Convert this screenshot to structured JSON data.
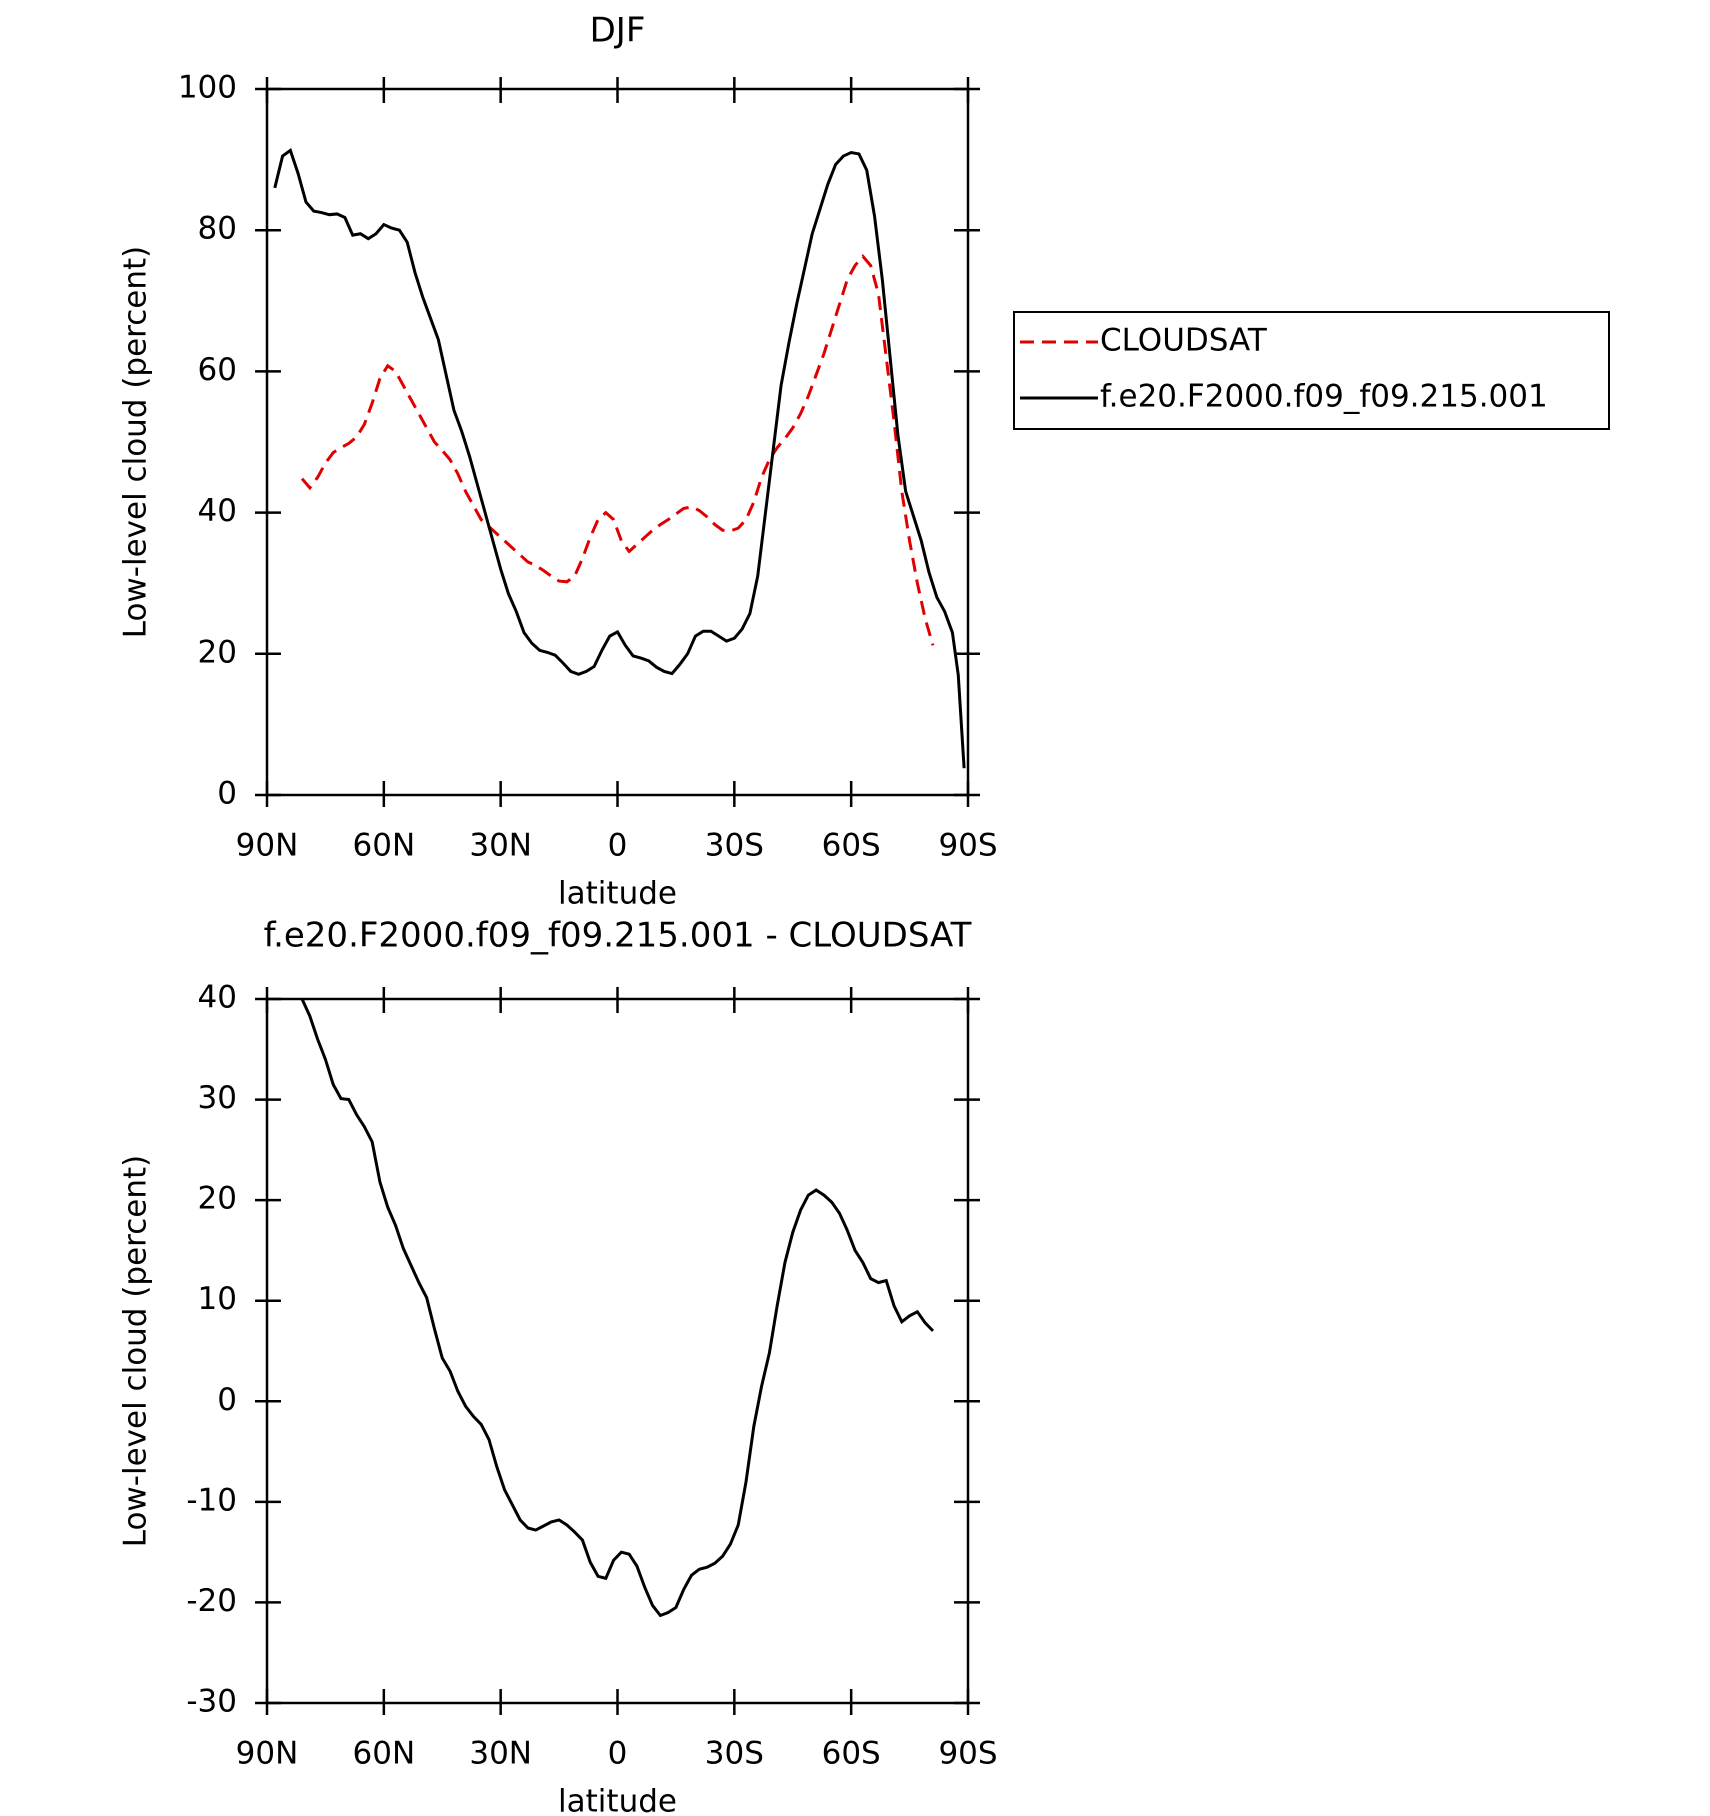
{
  "chart_data": [
    {
      "type": "line",
      "title": "DJF",
      "xlabel": "latitude",
      "ylabel": "Low-level cloud (percent)",
      "xlim": [
        90,
        -90
      ],
      "xticks": [
        {
          "value": 90,
          "label": "90N"
        },
        {
          "value": 60,
          "label": "60N"
        },
        {
          "value": 30,
          "label": "30N"
        },
        0,
        {
          "value": -30,
          "label": "30S"
        },
        {
          "value": -60,
          "label": "60S"
        },
        {
          "value": -90,
          "label": "90S"
        }
      ],
      "ylim": [
        0,
        100
      ],
      "yticks": [
        0,
        20,
        40,
        60,
        80,
        100
      ],
      "legend": "right",
      "series": [
        {
          "name": "CLOUDSAT",
          "color": "#e00000",
          "linestyle": "dashed",
          "x": [
            81,
            79,
            77,
            75,
            73,
            71,
            69,
            67,
            65,
            63,
            61,
            59,
            57,
            55,
            53,
            51,
            49,
            47,
            45,
            43,
            41,
            39,
            37,
            35,
            33,
            31,
            29,
            27,
            25,
            23,
            21,
            19,
            17,
            15,
            13,
            11,
            9,
            7,
            5,
            3,
            1,
            -1,
            -3,
            -5,
            -7,
            -9,
            -11,
            -13,
            -15,
            -17,
            -19,
            -21,
            -23,
            -25,
            -27,
            -29,
            -31,
            -33,
            -35,
            -37,
            -39,
            -41,
            -43,
            -45,
            -47,
            -49,
            -51,
            -53,
            -55,
            -57,
            -59,
            -61,
            -63,
            -65,
            -67,
            -69,
            -71,
            -73,
            -75,
            -77,
            -79,
            -81
          ],
          "values": [
            44.8,
            43.5,
            45,
            47,
            48.5,
            49.2,
            49.8,
            50.7,
            52.5,
            55.5,
            59,
            60.8,
            60,
            58,
            56,
            54,
            52,
            50,
            48.8,
            47.5,
            45.5,
            43,
            41,
            39,
            38,
            37,
            36,
            35,
            34,
            33,
            32.5,
            31.8,
            31,
            30.3,
            30.2,
            31,
            33.5,
            36.5,
            39,
            40,
            39,
            36,
            34.5,
            35.5,
            36.5,
            37.5,
            38.3,
            39,
            39.8,
            40.6,
            40.8,
            40.3,
            39.4,
            38.3,
            37.5,
            37.4,
            37.8,
            39,
            41.5,
            45,
            47.5,
            49.2,
            50.5,
            52,
            54,
            56.5,
            59.5,
            62.5,
            66,
            69.5,
            73,
            75,
            76.3,
            75,
            71,
            62,
            53,
            43,
            36,
            30,
            25,
            21.2
          ]
        },
        {
          "name": "f.e20.F2000.f09_f09.215.001",
          "color": "#000000",
          "linestyle": "solid",
          "x": [
            88,
            86,
            84,
            82,
            80,
            78,
            76,
            74,
            72,
            70,
            68,
            66,
            64,
            62,
            60,
            58,
            56,
            54,
            52,
            50,
            48,
            46,
            44,
            42,
            40,
            38,
            36,
            34,
            32,
            30,
            28,
            26,
            24,
            22,
            20,
            18,
            16,
            14,
            12,
            10,
            8,
            6,
            4,
            2,
            0,
            -2,
            -4,
            -6,
            -8,
            -10,
            -12,
            -14,
            -16,
            -18,
            -20,
            -22,
            -24,
            -26,
            -28,
            -30,
            -32,
            -34,
            -36,
            -38,
            -40,
            -42,
            -44,
            -46,
            -48,
            -50,
            -52,
            -54,
            -56,
            -58,
            -60,
            -62,
            -64,
            -66,
            -68,
            -70,
            -72,
            -74,
            -76,
            -78,
            -80,
            -82,
            -84,
            -86,
            -87.5,
            -89
          ],
          "values": [
            86,
            90.5,
            91.3,
            88,
            84,
            82.7,
            82.5,
            82.2,
            82.3,
            81.8,
            79.3,
            79.5,
            78.8,
            79.5,
            80.8,
            80.3,
            80,
            78.3,
            74,
            70.5,
            67.5,
            64.5,
            59.5,
            54.5,
            51.5,
            48,
            44,
            40,
            36,
            32,
            28.5,
            26,
            23,
            21.5,
            20.5,
            20.2,
            19.8,
            18.7,
            17.5,
            17.1,
            17.5,
            18.2,
            20.5,
            22.5,
            23.1,
            21.2,
            19.7,
            19.4,
            19,
            18.1,
            17.5,
            17.2,
            18.5,
            20,
            22.5,
            23.2,
            23.2,
            22.5,
            21.8,
            22.2,
            23.5,
            25.7,
            31,
            40,
            49,
            58,
            64,
            69.5,
            74.5,
            79.5,
            83,
            86.5,
            89.3,
            90.5,
            91,
            90.8,
            88.5,
            82,
            73,
            62,
            51,
            43,
            39.5,
            36,
            31.5,
            28,
            26,
            23,
            17,
            3.8
          ]
        }
      ]
    },
    {
      "type": "line",
      "title": "f.e20.F2000.f09_f09.215.001 - CLOUDSAT",
      "xlabel": "latitude",
      "ylabel": "Low-level cloud (percent)",
      "xlim": [
        90,
        -90
      ],
      "xticks": [
        {
          "value": 90,
          "label": "90N"
        },
        {
          "value": 60,
          "label": "60N"
        },
        {
          "value": 30,
          "label": "30N"
        },
        0,
        {
          "value": -30,
          "label": "30S"
        },
        {
          "value": -60,
          "label": "60S"
        },
        {
          "value": -90,
          "label": "90S"
        }
      ],
      "ylim": [
        -30,
        40
      ],
      "yticks": [
        -30,
        -20,
        -10,
        0,
        10,
        20,
        30,
        40
      ],
      "series": [
        {
          "color": "#000000",
          "linestyle": "solid",
          "x": [
            81,
            79,
            77,
            75,
            73,
            71,
            69,
            67,
            65,
            63,
            61,
            59,
            57,
            55,
            53,
            51,
            49,
            47,
            45,
            43,
            41,
            39,
            37,
            35,
            33,
            31,
            29,
            27,
            25,
            23,
            21,
            19,
            17,
            15,
            13,
            11,
            9,
            7,
            5,
            3,
            1,
            -1,
            -3,
            -5,
            -7,
            -9,
            -11,
            -13,
            -15,
            -17,
            -19,
            -21,
            -23,
            -25,
            -27,
            -29,
            -31,
            -33,
            -35,
            -37,
            -39,
            -41,
            -43,
            -45,
            -47,
            -49,
            -51,
            -53,
            -55,
            -57,
            -59,
            -61,
            -63,
            -65,
            -67,
            -69,
            -71,
            -73,
            -75,
            -77,
            -79,
            -81
          ],
          "values": [
            40,
            38.3,
            36,
            34,
            31.5,
            30.1,
            30,
            28.5,
            27.3,
            25.8,
            21.8,
            19.3,
            17.5,
            15.2,
            13.5,
            11.8,
            10.3,
            7.2,
            4.3,
            3,
            1,
            -0.5,
            -1.5,
            -2.3,
            -3.8,
            -6.5,
            -8.8,
            -10.3,
            -11.8,
            -12.6,
            -12.8,
            -12.4,
            -12,
            -11.8,
            -12.3,
            -13,
            -13.8,
            -16,
            -17.4,
            -17.6,
            -15.8,
            -15,
            -15.2,
            -16.4,
            -18.5,
            -20.3,
            -21.3,
            -21,
            -20.5,
            -18.7,
            -17.3,
            -16.7,
            -16.5,
            -16.1,
            -15.4,
            -14.2,
            -12.3,
            -8,
            -2.5,
            1.5,
            4.8,
            9.5,
            13.8,
            16.8,
            19,
            20.5,
            21,
            20.5,
            19.8,
            18.7,
            17,
            15,
            13.8,
            12.2,
            11.8,
            12,
            9.5,
            7.9,
            8.5,
            8.9,
            7.8,
            7
          ]
        }
      ]
    }
  ]
}
